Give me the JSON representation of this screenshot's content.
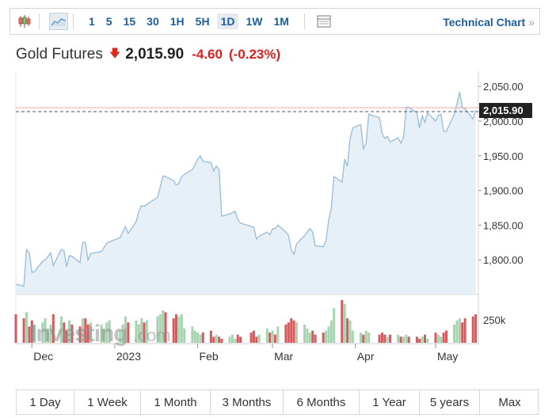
{
  "toolbar": {
    "intervals": [
      "1",
      "5",
      "15",
      "30",
      "1H",
      "5H",
      "1D",
      "1W",
      "1M"
    ],
    "active_interval": "1D",
    "technical_link": "Technical Chart",
    "chevron": "»"
  },
  "header": {
    "instrument": "Gold Futures",
    "price": "2,015.90",
    "change": "-4.60",
    "change_pct": "(-0.23%)",
    "direction": "down"
  },
  "watermark": {
    "brand": "Investing",
    "suffix": ".com"
  },
  "ranges": [
    "1 Day",
    "1 Week",
    "1 Month",
    "3 Months",
    "6 Months",
    "1 Year",
    "5 years",
    "Max"
  ],
  "colors": {
    "line": "#9ebfd9",
    "area": "#e8f0f7",
    "up_volume": "#a7d4b0",
    "down_volume": "#d9585c",
    "last_price_line": "#f2a8a8",
    "last_price_label_bg": "#222222",
    "accent": "#1d5d9c",
    "down": "#d91f1f"
  },
  "chart_data": {
    "type": "area",
    "title": "",
    "x_tick_labels": [
      "Dec",
      "2023",
      "Feb",
      "Mar",
      "Apr",
      "May"
    ],
    "y_tick_labels": [
      "2,050.00",
      "2,000.00",
      "1,950.00",
      "1,900.00",
      "1,850.00",
      "1,800.00"
    ],
    "ylim": [
      1750,
      2065
    ],
    "last_price_label": "2,015.90",
    "last_price": 2015.9,
    "volume_tick_label": "250k",
    "x_range": [
      "2022-11-25",
      "2023-05-17"
    ],
    "grid": false,
    "series": [
      {
        "x": [
          "2022-11-25",
          "2022-11-28",
          "2022-11-29",
          "2022-11-30",
          "2022-12-01",
          "2022-12-02",
          "2022-12-05",
          "2022-12-06",
          "2022-12-07",
          "2022-12-08",
          "2022-12-09",
          "2022-12-12",
          "2022-12-13",
          "2022-12-14",
          "2022-12-15",
          "2022-12-16",
          "2022-12-19",
          "2022-12-20",
          "2022-12-21",
          "2022-12-22",
          "2022-12-23",
          "2022-12-27",
          "2022-12-28",
          "2022-12-29",
          "2022-12-30",
          "2023-01-03",
          "2023-01-04",
          "2023-01-05",
          "2023-01-06",
          "2023-01-09",
          "2023-01-10",
          "2023-01-11",
          "2023-01-12",
          "2023-01-13",
          "2023-01-17",
          "2023-01-18",
          "2023-01-19",
          "2023-01-20",
          "2023-01-23",
          "2023-01-24",
          "2023-01-25",
          "2023-01-26",
          "2023-01-27",
          "2023-01-30",
          "2023-01-31",
          "2023-02-01",
          "2023-02-02",
          "2023-02-03",
          "2023-02-06",
          "2023-02-07",
          "2023-02-08",
          "2023-02-09",
          "2023-02-10",
          "2023-02-13",
          "2023-02-14",
          "2023-02-15",
          "2023-02-16",
          "2023-02-17",
          "2023-02-21",
          "2023-02-22",
          "2023-02-23",
          "2023-02-24",
          "2023-02-27",
          "2023-02-28",
          "2023-03-01",
          "2023-03-02",
          "2023-03-03",
          "2023-03-06",
          "2023-03-07",
          "2023-03-08",
          "2023-03-09",
          "2023-03-10",
          "2023-03-13",
          "2023-03-14",
          "2023-03-15",
          "2023-03-16",
          "2023-03-17",
          "2023-03-20",
          "2023-03-21",
          "2023-03-22",
          "2023-03-23",
          "2023-03-24",
          "2023-03-27",
          "2023-03-28",
          "2023-03-29",
          "2023-03-30",
          "2023-03-31",
          "2023-04-03",
          "2023-04-04",
          "2023-04-05",
          "2023-04-06",
          "2023-04-10",
          "2023-04-11",
          "2023-04-12",
          "2023-04-13",
          "2023-04-14",
          "2023-04-17",
          "2023-04-18",
          "2023-04-19",
          "2023-04-20",
          "2023-04-21",
          "2023-04-24",
          "2023-04-25",
          "2023-04-26",
          "2023-04-27",
          "2023-04-28",
          "2023-05-01",
          "2023-05-02",
          "2023-05-03",
          "2023-05-04",
          "2023-05-05",
          "2023-05-08",
          "2023-05-09",
          "2023-05-10",
          "2023-05-11",
          "2023-05-12",
          "2023-05-15",
          "2023-05-16"
        ],
        "values": [
          1765,
          1762,
          1815,
          1810,
          1782,
          1783,
          1798,
          1800,
          1805,
          1810,
          1792,
          1815,
          1813,
          1790,
          1806,
          1805,
          1796,
          1825,
          1825,
          1800,
          1809,
          1812,
          1818,
          1824,
          1826,
          1832,
          1840,
          1848,
          1838,
          1855,
          1870,
          1878,
          1877,
          1880,
          1890,
          1905,
          1921,
          1920,
          1914,
          1908,
          1910,
          1920,
          1923,
          1930,
          1937,
          1945,
          1950,
          1942,
          1940,
          1928,
          1935,
          1930,
          1863,
          1866,
          1868,
          1870,
          1858,
          1853,
          1848,
          1847,
          1830,
          1834,
          1840,
          1836,
          1845,
          1845,
          1850,
          1840,
          1835,
          1815,
          1808,
          1823,
          1835,
          1840,
          1845,
          1840,
          1820,
          1819,
          1828,
          1857,
          1875,
          1920,
          1912,
          1945,
          1935,
          1975,
          1990,
          1995,
          1960,
          1968,
          2010,
          2005,
          1982,
          1975,
          1978,
          1970,
          1976,
          1968,
          1977,
          2020,
          2020,
          2012,
          1990,
          2008,
          1998,
          2012,
          2000,
          2008,
          2010,
          1985,
          1985,
          2010,
          2025,
          2042,
          2020,
          2018,
          2003,
          2015.9
        ],
        "volume": [
          70,
          60,
          75,
          40,
          55,
          45,
          50,
          60,
          35,
          45,
          70,
          65,
          50,
          30,
          55,
          45,
          40,
          60,
          60,
          45,
          50,
          45,
          35,
          50,
          55,
          30,
          45,
          65,
          50,
          55,
          45,
          60,
          50,
          55,
          65,
          70,
          80,
          75,
          60,
          70,
          65,
          70,
          35,
          40,
          30,
          25,
          20,
          25,
          30,
          15,
          20,
          15,
          10,
          15,
          20,
          10,
          20,
          15,
          25,
          30,
          15,
          20,
          35,
          25,
          30,
          20,
          40,
          45,
          50,
          60,
          55,
          50,
          45,
          35,
          25,
          30,
          20,
          25,
          30,
          40,
          55,
          85,
          105,
          95,
          60,
          55,
          30,
          25,
          20,
          30,
          25,
          20,
          25,
          20,
          15,
          20,
          20,
          15,
          15,
          20,
          15,
          15,
          10,
          15,
          20,
          10,
          25,
          20,
          15,
          25,
          30,
          45,
          55,
          60,
          50,
          60,
          65,
          70
        ],
        "direction": [
          "d",
          "d",
          "u",
          "d",
          "d",
          "u",
          "u",
          "u",
          "u",
          "u",
          "d",
          "u",
          "d",
          "d",
          "u",
          "d",
          "d",
          "u",
          "d",
          "d",
          "u",
          "u",
          "u",
          "u",
          "u",
          "u",
          "u",
          "u",
          "d",
          "u",
          "u",
          "u",
          "d",
          "u",
          "u",
          "u",
          "u",
          "d",
          "d",
          "d",
          "u",
          "u",
          "u",
          "u",
          "u",
          "u",
          "u",
          "d",
          "d",
          "d",
          "u",
          "d",
          "d",
          "u",
          "u",
          "u",
          "d",
          "d",
          "d",
          "d",
          "d",
          "u",
          "u",
          "d",
          "u",
          "d",
          "u",
          "d",
          "d",
          "d",
          "d",
          "u",
          "u",
          "u",
          "u",
          "d",
          "d",
          "d",
          "u",
          "u",
          "u",
          "u",
          "d",
          "u",
          "d",
          "u",
          "u",
          "u",
          "d",
          "u",
          "u",
          "d",
          "d",
          "d",
          "u",
          "d",
          "u",
          "d",
          "u",
          "u",
          "d",
          "d",
          "d",
          "u",
          "d",
          "u",
          "d",
          "u",
          "u",
          "d",
          "d",
          "u",
          "u",
          "u",
          "d",
          "d",
          "d",
          "d"
        ]
      }
    ]
  }
}
